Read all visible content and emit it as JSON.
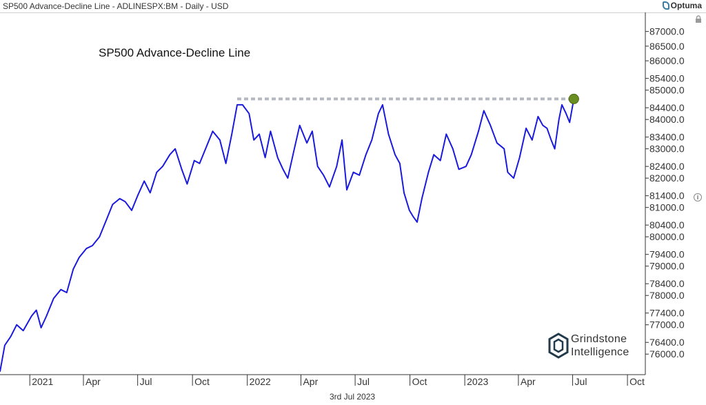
{
  "header": {
    "title": "SP500 Advance-Decline Line - ADLINESPX:BM - Daily - USD",
    "brand": "Optuma"
  },
  "footer": {
    "date": "3rd Jul 2023"
  },
  "logo": {
    "line1": "Grindstone",
    "line2": "Intelligence"
  },
  "colors": {
    "line": "#1a1adc",
    "resistance": "#b4b8c0",
    "marker": "#6b8e23",
    "axis": "#333333"
  },
  "chart_data": {
    "type": "line",
    "title": "SP500 Advance-Decline Line",
    "grid": false,
    "y_axis_side": "right",
    "ylim": [
      75300,
      87650
    ],
    "y_ticks": [
      76000,
      76400,
      77000,
      77400,
      78000,
      78400,
      79000,
      79400,
      80000,
      80400,
      81000,
      81400,
      82000,
      82400,
      83000,
      83400,
      84000,
      84400,
      85000,
      85400,
      86000,
      86500,
      87000
    ],
    "y_tick_labels": [
      "76000.0",
      "76400.0",
      "77000.0",
      "77400.0",
      "78000.0",
      "78400.0",
      "79000.0",
      "79400.0",
      "80000.0",
      "80400.0",
      "81000.0",
      "81400.0",
      "82000.0",
      "82400.0",
      "83000.0",
      "83400.0",
      "84000.0",
      "84400.0",
      "85000.0",
      "85400.0",
      "86000.0",
      "86500.0",
      "87000.0"
    ],
    "x_start": "2020-11-12",
    "x_end": "2023-10-31",
    "x_ticks": [
      {
        "label": "2021",
        "date": "2021-01-01"
      },
      {
        "label": "Apr",
        "date": "2021-04-01"
      },
      {
        "label": "Jul",
        "date": "2021-07-01"
      },
      {
        "label": "Oct",
        "date": "2021-10-01"
      },
      {
        "label": "2022",
        "date": "2022-01-01"
      },
      {
        "label": "Apr",
        "date": "2022-04-01"
      },
      {
        "label": "Jul",
        "date": "2022-07-01"
      },
      {
        "label": "Oct",
        "date": "2022-10-01"
      },
      {
        "label": "2023",
        "date": "2023-01-01"
      },
      {
        "label": "Apr",
        "date": "2023-04-01"
      },
      {
        "label": "Jul",
        "date": "2023-07-01"
      },
      {
        "label": "Oct",
        "date": "2023-10-01"
      }
    ],
    "series": [
      {
        "values": [
          [
            "2020-11-12",
            75400
          ],
          [
            "2020-11-20",
            76300
          ],
          [
            "2020-11-30",
            76600
          ],
          [
            "2020-12-10",
            77000
          ],
          [
            "2020-12-21",
            76800
          ],
          [
            "2021-01-04",
            77300
          ],
          [
            "2021-01-12",
            77500
          ],
          [
            "2021-01-20",
            76900
          ],
          [
            "2021-01-29",
            77300
          ],
          [
            "2021-02-10",
            77900
          ],
          [
            "2021-02-22",
            78200
          ],
          [
            "2021-03-04",
            78100
          ],
          [
            "2021-03-15",
            78900
          ],
          [
            "2021-03-25",
            79300
          ],
          [
            "2021-04-06",
            79600
          ],
          [
            "2021-04-16",
            79700
          ],
          [
            "2021-04-28",
            80000
          ],
          [
            "2021-05-10",
            80600
          ],
          [
            "2021-05-20",
            81100
          ],
          [
            "2021-06-01",
            81300
          ],
          [
            "2021-06-10",
            81200
          ],
          [
            "2021-06-21",
            80900
          ],
          [
            "2021-07-01",
            81400
          ],
          [
            "2021-07-12",
            81900
          ],
          [
            "2021-07-22",
            81500
          ],
          [
            "2021-08-02",
            82200
          ],
          [
            "2021-08-12",
            82400
          ],
          [
            "2021-08-24",
            82800
          ],
          [
            "2021-09-02",
            83000
          ],
          [
            "2021-09-13",
            82300
          ],
          [
            "2021-09-22",
            81800
          ],
          [
            "2021-10-04",
            82600
          ],
          [
            "2021-10-13",
            82500
          ],
          [
            "2021-10-25",
            83100
          ],
          [
            "2021-11-04",
            83600
          ],
          [
            "2021-11-16",
            83300
          ],
          [
            "2021-11-26",
            82500
          ],
          [
            "2021-12-06",
            83500
          ],
          [
            "2021-12-15",
            84500
          ],
          [
            "2021-12-24",
            84500
          ],
          [
            "2022-01-04",
            84200
          ],
          [
            "2022-01-12",
            83300
          ],
          [
            "2022-01-21",
            83500
          ],
          [
            "2022-01-31",
            82700
          ],
          [
            "2022-02-09",
            83600
          ],
          [
            "2022-02-21",
            82700
          ],
          [
            "2022-03-02",
            82300
          ],
          [
            "2022-03-10",
            82000
          ],
          [
            "2022-03-21",
            83000
          ],
          [
            "2022-03-30",
            83800
          ],
          [
            "2022-04-11",
            83200
          ],
          [
            "2022-04-20",
            83600
          ],
          [
            "2022-04-29",
            82400
          ],
          [
            "2022-05-09",
            82100
          ],
          [
            "2022-05-19",
            81700
          ],
          [
            "2022-05-31",
            82400
          ],
          [
            "2022-06-09",
            83300
          ],
          [
            "2022-06-17",
            81600
          ],
          [
            "2022-06-28",
            82200
          ],
          [
            "2022-07-08",
            82100
          ],
          [
            "2022-07-19",
            82800
          ],
          [
            "2022-07-29",
            83300
          ],
          [
            "2022-08-09",
            84200
          ],
          [
            "2022-08-16",
            84500
          ],
          [
            "2022-08-26",
            83500
          ],
          [
            "2022-09-06",
            82800
          ],
          [
            "2022-09-14",
            82500
          ],
          [
            "2022-09-21",
            81500
          ],
          [
            "2022-09-30",
            80900
          ],
          [
            "2022-10-06",
            80700
          ],
          [
            "2022-10-13",
            80500
          ],
          [
            "2022-10-21",
            81300
          ],
          [
            "2022-11-01",
            82200
          ],
          [
            "2022-11-10",
            82800
          ],
          [
            "2022-11-21",
            82600
          ],
          [
            "2022-12-01",
            83500
          ],
          [
            "2022-12-12",
            83000
          ],
          [
            "2022-12-22",
            82300
          ],
          [
            "2023-01-03",
            82400
          ],
          [
            "2023-01-12",
            82800
          ],
          [
            "2023-01-24",
            83600
          ],
          [
            "2023-02-02",
            84300
          ],
          [
            "2023-02-13",
            83800
          ],
          [
            "2023-02-24",
            83200
          ],
          [
            "2023-03-08",
            83000
          ],
          [
            "2023-03-14",
            82200
          ],
          [
            "2023-03-24",
            82000
          ],
          [
            "2023-04-03",
            82700
          ],
          [
            "2023-04-14",
            83700
          ],
          [
            "2023-04-24",
            83300
          ],
          [
            "2023-05-04",
            84100
          ],
          [
            "2023-05-12",
            83800
          ],
          [
            "2023-05-19",
            83700
          ],
          [
            "2023-05-26",
            83300
          ],
          [
            "2023-06-01",
            83000
          ],
          [
            "2023-06-08",
            84000
          ],
          [
            "2023-06-13",
            84500
          ],
          [
            "2023-06-20",
            84200
          ],
          [
            "2023-06-26",
            83900
          ],
          [
            "2023-07-03",
            84700
          ]
        ]
      }
    ],
    "resistance_level": 84700,
    "resistance_start": "2021-12-15",
    "resistance_end": "2023-07-13",
    "marker": {
      "date": "2023-07-03",
      "value": 84700
    }
  }
}
